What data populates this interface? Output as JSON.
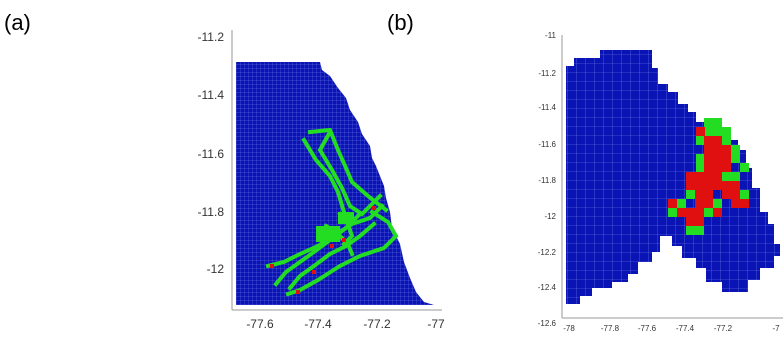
{
  "panels": [
    {
      "label": "(a)",
      "x_ticks": [
        "-77.6",
        "-77.4",
        "-77.2",
        "-77"
      ],
      "y_ticks": [
        "-11.2",
        "-11.4",
        "-11.6",
        "-11.8",
        "-12"
      ]
    },
    {
      "label": "(b)",
      "x_ticks": [
        "-78",
        "-77.8",
        "-77.6",
        "-77.4",
        "-77.2",
        "-7"
      ],
      "y_ticks": [
        "-11",
        "-11.2",
        "-11.4",
        "-11.6",
        "-11.8",
        "-12",
        "-12.2",
        "-12.4",
        "-12.6"
      ]
    }
  ],
  "colors": {
    "sea": "#0a14b4",
    "green": "#22dd22",
    "red": "#e01010",
    "grid": "#b8c0ff",
    "axis": "#888888"
  }
}
